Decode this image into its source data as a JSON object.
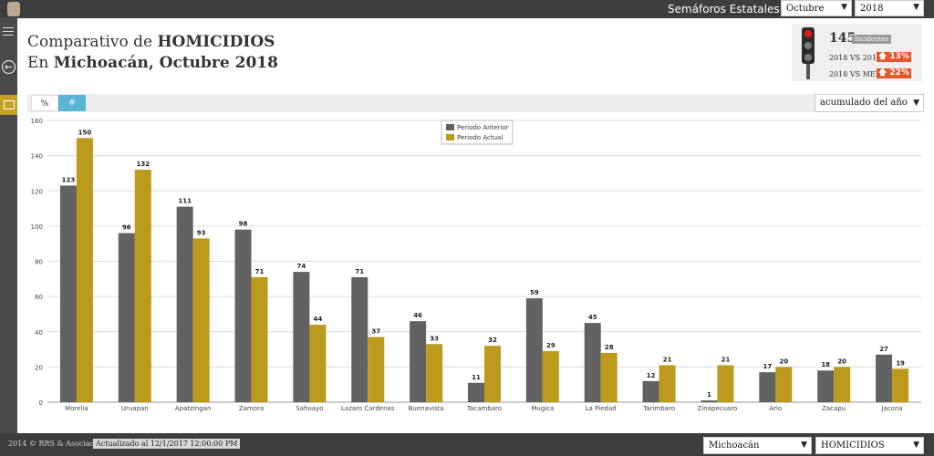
{
  "header": {
    "menu_title": "Semáforos Estatales ▾",
    "month": "Octubre",
    "year": "2018"
  },
  "title": {
    "line1_prefix": "Comparativo de ",
    "line1_bold": "HOMICIDIOS",
    "line2_prefix": "En ",
    "line2_bold": "Michoacán, Octubre 2018"
  },
  "stats": {
    "count": "145",
    "count_label": "Incidentes",
    "vs_prev_label": "2018 VS 2017",
    "vs_prev_value": "13%",
    "vs_mean_label": "2018 VS MEDIA",
    "vs_mean_value": "22%",
    "light_color": "#e01b1b",
    "badge_color": "#e8552a"
  },
  "toolbar": {
    "percent_label": "%",
    "number_label": "#",
    "period_select": "acumulado del año"
  },
  "footer": {
    "copyright": "2014 © RRS & Asociados S.C.",
    "updated": "Actualizado al 12/1/2017 12:00:00 PM",
    "state_select": "Michoacán",
    "crime_select": "HOMICIDIOS"
  },
  "chart_data": {
    "type": "bar",
    "categories": [
      "Morelia",
      "Uruapan",
      "Apatzingan",
      "Zamora",
      "Sahuayo",
      "Lazaro Cardenas",
      "Buenavista",
      "Tacambaro",
      "Mugica",
      "La Piedad",
      "Tarimbaro",
      "Zinapecuaro",
      "Ario",
      "Zacapu",
      "Jacona"
    ],
    "series": [
      {
        "name": "Periodo Anterior",
        "color": "#626262",
        "values": [
          123,
          96,
          111,
          98,
          74,
          71,
          46,
          11,
          59,
          45,
          12,
          1,
          17,
          18,
          27
        ]
      },
      {
        "name": "Periodo Actual",
        "color": "#bc9a1e",
        "values": [
          150,
          132,
          93,
          71,
          44,
          37,
          33,
          32,
          29,
          28,
          21,
          21,
          20,
          20,
          19
        ]
      }
    ],
    "ylim": [
      0,
      160
    ],
    "yticks": [
      0,
      20,
      40,
      60,
      80,
      100,
      120,
      140,
      160
    ],
    "grid": true,
    "legend_position": "top-center"
  }
}
